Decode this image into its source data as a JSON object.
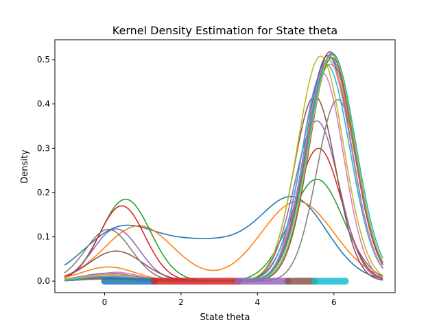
{
  "chart_data": {
    "type": "line",
    "title": "Kernel Density Estimation for State theta",
    "xlabel": "State theta",
    "ylabel": "Density",
    "xlim": [
      -1.3,
      7.6
    ],
    "ylim": [
      -0.026,
      0.545
    ],
    "x_ticks": [
      0,
      2,
      4,
      6
    ],
    "y_ticks": [
      0.0,
      0.1,
      0.2,
      0.3,
      0.4,
      0.5
    ],
    "x_tick_labels": [
      "0",
      "2",
      "4",
      "6"
    ],
    "y_tick_labels": [
      "0.0",
      "0.1",
      "0.2",
      "0.3",
      "0.4",
      "0.5"
    ],
    "grid": false,
    "legend": "none",
    "x_range": [
      -1.05,
      7.28
    ],
    "rug": {
      "y": 0.0,
      "x_ranges": [
        [
          0.0,
          1.3
        ],
        [
          1.3,
          3.5
        ],
        [
          3.5,
          4.8
        ],
        [
          4.8,
          5.5
        ],
        [
          5.5,
          6.3
        ]
      ],
      "colors": [
        "#1f77b4",
        "#d62728",
        "#9467bd",
        "#8c564b",
        "#17becf"
      ]
    },
    "series": [
      {
        "color": "#1f77b4",
        "components": [
          {
            "mu": 0.3,
            "sigma": 0.9,
            "amp": 0.09
          },
          {
            "mu": 2.6,
            "sigma": 1.6,
            "amp": 0.09
          },
          {
            "mu": 5.0,
            "sigma": 0.85,
            "amp": 0.16
          }
        ]
      },
      {
        "color": "#ff7f0e",
        "components": [
          {
            "mu": 0.9,
            "sigma": 0.9,
            "amp": 0.125
          },
          {
            "mu": 5.05,
            "sigma": 0.95,
            "amp": 0.18
          }
        ]
      },
      {
        "color": "#2ca02c",
        "components": [
          {
            "mu": 0.55,
            "sigma": 0.65,
            "amp": 0.185
          },
          {
            "mu": 5.55,
            "sigma": 0.7,
            "amp": 0.23
          }
        ]
      },
      {
        "color": "#d62728",
        "components": [
          {
            "mu": 0.45,
            "sigma": 0.6,
            "amp": 0.17
          },
          {
            "mu": 5.6,
            "sigma": 0.6,
            "amp": 0.3
          }
        ]
      },
      {
        "color": "#9467bd",
        "components": [
          {
            "mu": 0.3,
            "sigma": 0.6,
            "amp": 0.118
          },
          {
            "mu": 5.55,
            "sigma": 0.58,
            "amp": 0.362
          }
        ]
      },
      {
        "color": "#8c564b",
        "components": [
          {
            "mu": 0.3,
            "sigma": 0.7,
            "amp": 0.068
          },
          {
            "mu": 5.5,
            "sigma": 0.55,
            "amp": 0.418
          }
        ]
      },
      {
        "color": "#e377c2",
        "components": [
          {
            "mu": 0.3,
            "sigma": 0.6,
            "amp": 0.02
          },
          {
            "mu": 5.7,
            "sigma": 0.55,
            "amp": 0.47
          }
        ]
      },
      {
        "color": "#7f7f7f",
        "components": [
          {
            "mu": 0.1,
            "sigma": 0.6,
            "amp": 0.117
          },
          {
            "mu": 6.1,
            "sigma": 0.55,
            "amp": 0.41
          }
        ]
      },
      {
        "color": "#bcbd22",
        "components": [
          {
            "mu": 0.2,
            "sigma": 0.6,
            "amp": 0.012
          },
          {
            "mu": 5.65,
            "sigma": 0.6,
            "amp": 0.508
          }
        ]
      },
      {
        "color": "#17becf",
        "components": [
          {
            "mu": 0.2,
            "sigma": 0.6,
            "amp": 0.008
          },
          {
            "mu": 5.8,
            "sigma": 0.62,
            "amp": 0.49
          }
        ]
      },
      {
        "color": "#1f77b4",
        "components": [
          {
            "mu": 0.1,
            "sigma": 0.7,
            "amp": 0.005
          },
          {
            "mu": 5.85,
            "sigma": 0.6,
            "amp": 0.51
          }
        ]
      },
      {
        "color": "#ff7f0e",
        "components": [
          {
            "mu": 0.1,
            "sigma": 0.7,
            "amp": 0.032
          },
          {
            "mu": 5.9,
            "sigma": 0.62,
            "amp": 0.49
          }
        ]
      },
      {
        "color": "#2ca02c",
        "components": [
          {
            "mu": 0.1,
            "sigma": 0.7,
            "amp": 0.01
          },
          {
            "mu": 5.95,
            "sigma": 0.6,
            "amp": 0.505
          }
        ]
      },
      {
        "color": "#d62728",
        "components": [
          {
            "mu": 0.1,
            "sigma": 0.7,
            "amp": 0.008
          },
          {
            "mu": 5.9,
            "sigma": 0.6,
            "amp": 0.518
          }
        ]
      },
      {
        "color": "#9467bd",
        "components": [
          {
            "mu": 0.1,
            "sigma": 0.7,
            "amp": 0.018
          },
          {
            "mu": 5.95,
            "sigma": 0.58,
            "amp": 0.512
          }
        ]
      },
      {
        "color": "#8c564b",
        "components": [
          {
            "mu": 0.1,
            "sigma": 0.7,
            "amp": 0.005
          },
          {
            "mu": 5.95,
            "sigma": 0.58,
            "amp": 0.515
          }
        ]
      },
      {
        "color": "#e377c2",
        "components": [
          {
            "mu": 0.1,
            "sigma": 0.7,
            "amp": 0.012
          },
          {
            "mu": 5.85,
            "sigma": 0.6,
            "amp": 0.5
          }
        ]
      },
      {
        "color": "#7f7f7f",
        "components": [
          {
            "mu": 0.1,
            "sigma": 0.7,
            "amp": 0.005
          },
          {
            "mu": 5.9,
            "sigma": 0.62,
            "amp": 0.505
          }
        ]
      },
      {
        "color": "#bcbd22",
        "components": [
          {
            "mu": 0.1,
            "sigma": 0.7,
            "amp": 0.015
          },
          {
            "mu": 5.95,
            "sigma": 0.6,
            "amp": 0.51
          }
        ]
      },
      {
        "color": "#17becf",
        "components": [
          {
            "mu": 0.1,
            "sigma": 0.7,
            "amp": 0.01
          },
          {
            "mu": 5.95,
            "sigma": 0.62,
            "amp": 0.515
          }
        ]
      }
    ]
  }
}
